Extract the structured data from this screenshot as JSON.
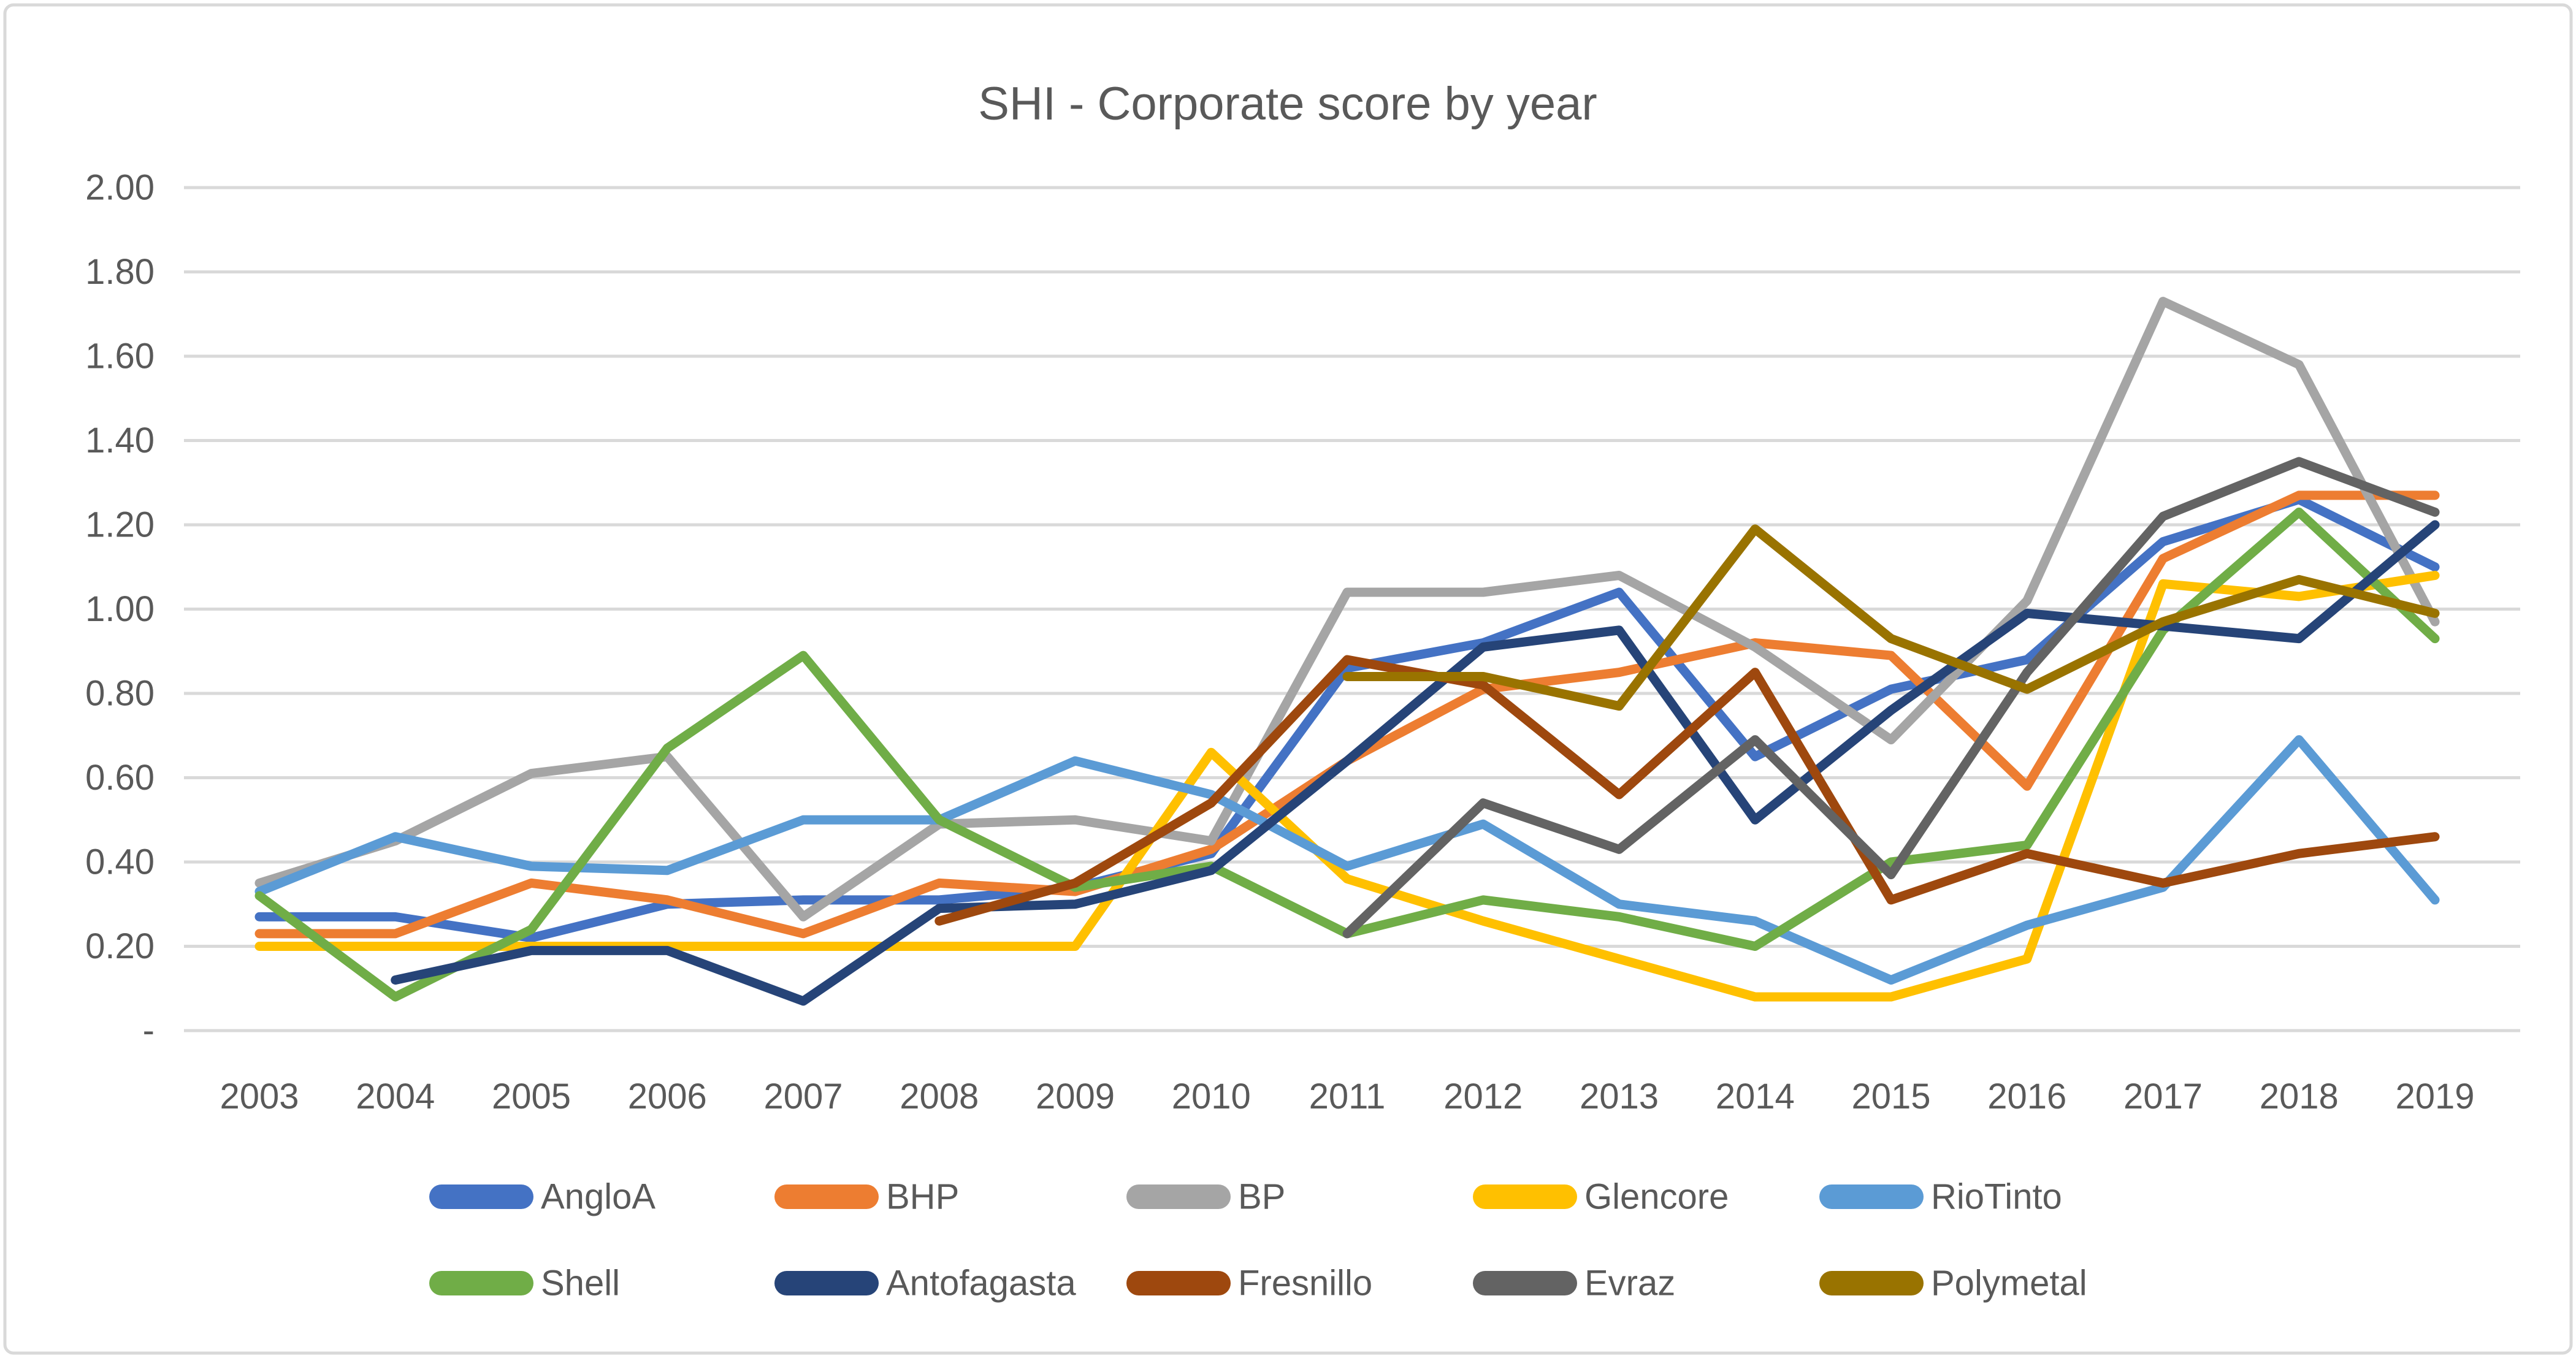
{
  "title": "SHI  - Corporate score by year",
  "colors": {
    "title_text": "#595959",
    "axis_text": "#595959",
    "legend_text": "#595959",
    "gridline": "#D9D9D9",
    "chart_border": "#D9D9D9",
    "background": "#FFFFFF"
  },
  "chart_data": {
    "type": "line",
    "title": "SHI  - Corporate score by year",
    "xlabel": "",
    "ylabel": "",
    "ylim": [
      0,
      2.0
    ],
    "y_tick_step": 0.2,
    "grid": true,
    "legend_position": "bottom",
    "x_categories": [
      "2003",
      "2004",
      "2005",
      "2006",
      "2007",
      "2008",
      "2009",
      "2010",
      "2011",
      "2012",
      "2013",
      "2014",
      "2015",
      "2016",
      "2017",
      "2018",
      "2019"
    ],
    "y_tick_labels": [
      "-",
      "0.20",
      "0.40",
      "0.60",
      "0.80",
      "1.00",
      "1.20",
      "1.40",
      "1.60",
      "1.80",
      "2.00"
    ],
    "series": [
      {
        "name": "AngloA",
        "color": "#4472C4",
        "values": [
          0.27,
          0.27,
          0.22,
          0.3,
          0.31,
          0.31,
          0.34,
          0.42,
          0.86,
          0.92,
          1.04,
          0.65,
          0.81,
          0.88,
          1.16,
          1.26,
          1.1
        ]
      },
      {
        "name": "BHP",
        "color": "#ED7D31",
        "values": [
          0.23,
          0.23,
          0.35,
          0.31,
          0.23,
          0.35,
          0.33,
          0.43,
          0.64,
          0.81,
          0.85,
          0.92,
          0.89,
          0.58,
          1.12,
          1.27,
          1.27
        ]
      },
      {
        "name": "BP",
        "color": "#A5A5A5",
        "values": [
          0.35,
          0.45,
          0.61,
          0.65,
          0.27,
          0.49,
          0.5,
          0.45,
          1.04,
          1.04,
          1.08,
          0.91,
          0.69,
          1.02,
          1.73,
          1.58,
          0.97
        ]
      },
      {
        "name": "Glencore",
        "color": "#FFC000",
        "values": [
          0.2,
          0.2,
          0.2,
          0.2,
          0.2,
          0.2,
          0.2,
          0.66,
          0.36,
          0.26,
          0.17,
          0.08,
          0.08,
          0.17,
          1.06,
          1.03,
          1.08
        ]
      },
      {
        "name": "RioTinto",
        "color": "#5B9BD5",
        "values": [
          0.33,
          0.46,
          0.39,
          0.38,
          0.5,
          0.5,
          0.64,
          0.56,
          0.39,
          0.49,
          0.3,
          0.26,
          0.12,
          0.25,
          0.34,
          0.69,
          0.31
        ]
      },
      {
        "name": "Shell",
        "color": "#70AD47",
        "values": [
          0.32,
          0.08,
          0.24,
          0.67,
          0.89,
          0.5,
          0.34,
          0.39,
          0.23,
          0.31,
          0.27,
          0.2,
          0.4,
          0.44,
          0.95,
          1.23,
          0.93
        ]
      },
      {
        "name": "Antofagasta",
        "color": "#264478",
        "values": [
          null,
          0.12,
          0.19,
          0.19,
          0.07,
          0.29,
          0.3,
          0.38,
          0.64,
          0.91,
          0.95,
          0.5,
          0.76,
          0.99,
          0.96,
          0.93,
          1.2
        ]
      },
      {
        "name": "Fresnillo",
        "color": "#9E480E",
        "values": [
          null,
          null,
          null,
          null,
          null,
          0.26,
          0.35,
          0.54,
          0.88,
          0.82,
          0.56,
          0.85,
          0.31,
          0.42,
          0.35,
          0.42,
          0.46
        ]
      },
      {
        "name": "Evraz",
        "color": "#636363",
        "values": [
          null,
          null,
          null,
          null,
          null,
          null,
          null,
          null,
          0.23,
          0.54,
          0.43,
          0.69,
          0.37,
          0.85,
          1.22,
          1.35,
          1.23
        ]
      },
      {
        "name": "Polymetal",
        "color": "#997300",
        "values": [
          null,
          null,
          null,
          null,
          null,
          null,
          null,
          null,
          0.84,
          0.84,
          0.77,
          1.19,
          0.93,
          0.81,
          0.97,
          1.07,
          0.99
        ]
      }
    ],
    "legend_rows": [
      [
        "AngloA",
        "BHP",
        "BP",
        "Glencore",
        "RioTinto"
      ],
      [
        "Shell",
        "Antofagasta",
        "Fresnillo",
        "Evraz",
        "Polymetal"
      ]
    ]
  },
  "layout_note": "line chart, horizontal gridlines only, legend in two bottom rows"
}
